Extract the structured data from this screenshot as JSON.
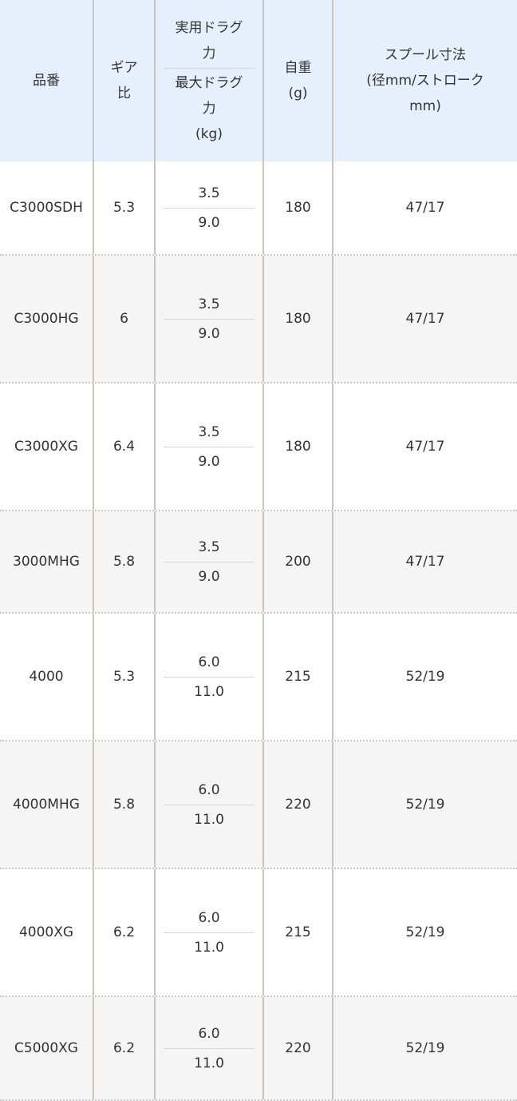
{
  "header": {
    "model": "品番",
    "gear": [
      "ギア",
      "比"
    ],
    "drag_practical": [
      "実用ドラグ",
      "力"
    ],
    "drag_max": [
      "最大ドラグ",
      "力",
      "(kg)"
    ],
    "weight": [
      "自重",
      "(g)"
    ],
    "spool": [
      "スプール寸法",
      "(径mm/ストローク",
      "mm)"
    ]
  },
  "rows": [
    {
      "model": "C3000SDH",
      "gear": "5.3",
      "drag_practical": "3.5",
      "drag_max": "9.0",
      "weight": "180",
      "spool": "47/17"
    },
    {
      "model": "C3000HG",
      "gear": "6",
      "drag_practical": "3.5",
      "drag_max": "9.0",
      "weight": "180",
      "spool": "47/17"
    },
    {
      "model": "C3000XG",
      "gear": "6.4",
      "drag_practical": "3.5",
      "drag_max": "9.0",
      "weight": "180",
      "spool": "47/17"
    },
    {
      "model": "3000MHG",
      "gear": "5.8",
      "drag_practical": "3.5",
      "drag_max": "9.0",
      "weight": "200",
      "spool": "47/17"
    },
    {
      "model": "4000",
      "gear": "5.3",
      "drag_practical": "6.0",
      "drag_max": "11.0",
      "weight": "215",
      "spool": "52/19"
    },
    {
      "model": "4000MHG",
      "gear": "5.8",
      "drag_practical": "6.0",
      "drag_max": "11.0",
      "weight": "220",
      "spool": "52/19"
    },
    {
      "model": "4000XG",
      "gear": "6.2",
      "drag_practical": "6.0",
      "drag_max": "11.0",
      "weight": "215",
      "spool": "52/19"
    },
    {
      "model": "C5000XG",
      "gear": "6.2",
      "drag_practical": "6.0",
      "drag_max": "11.0",
      "weight": "220",
      "spool": "52/19"
    }
  ]
}
